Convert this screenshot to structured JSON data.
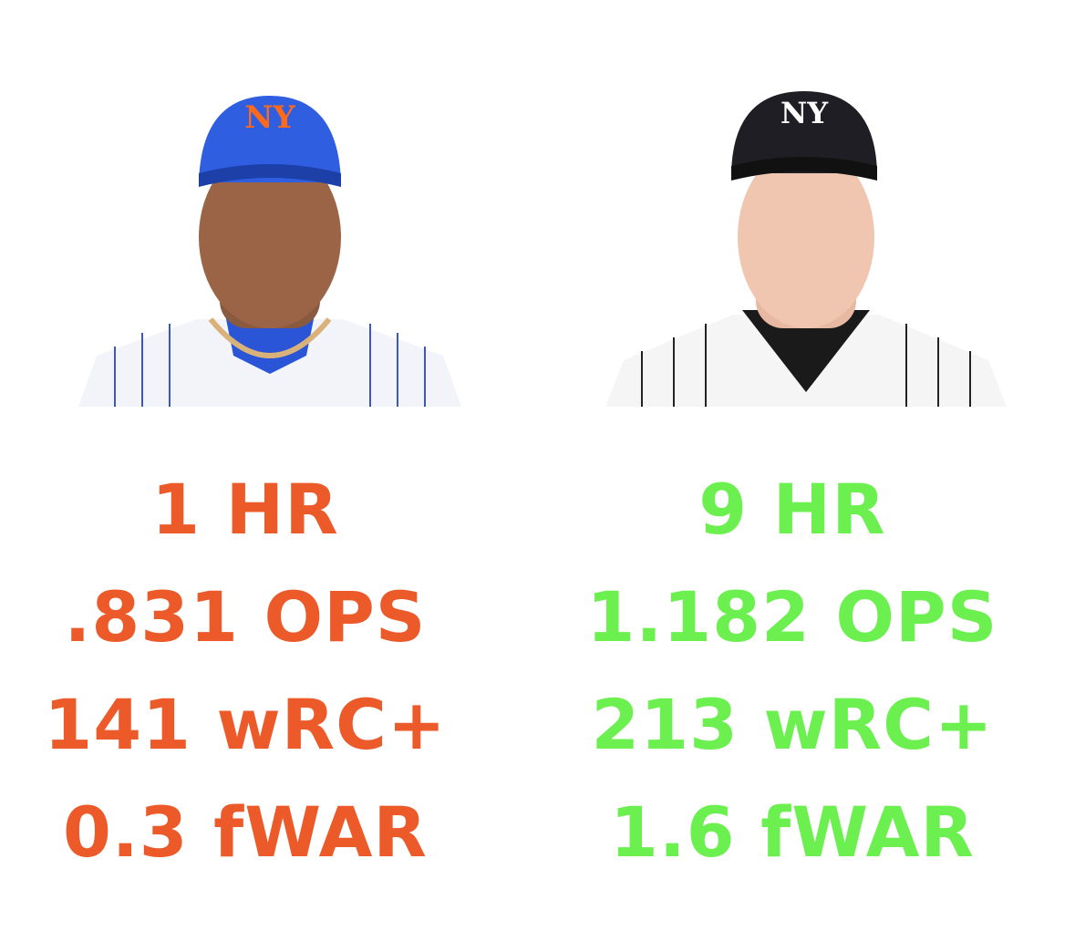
{
  "players": [
    {
      "color": "#ec5a2a",
      "stats": [
        "1 HR",
        ".831 OPS",
        "141 wRC+",
        "0.3 fWAR"
      ]
    },
    {
      "color": "#6bf04f",
      "stats": [
        "9 HR",
        "1.182 OPS",
        "213 wRC+",
        "1.6 fWAR"
      ]
    }
  ]
}
